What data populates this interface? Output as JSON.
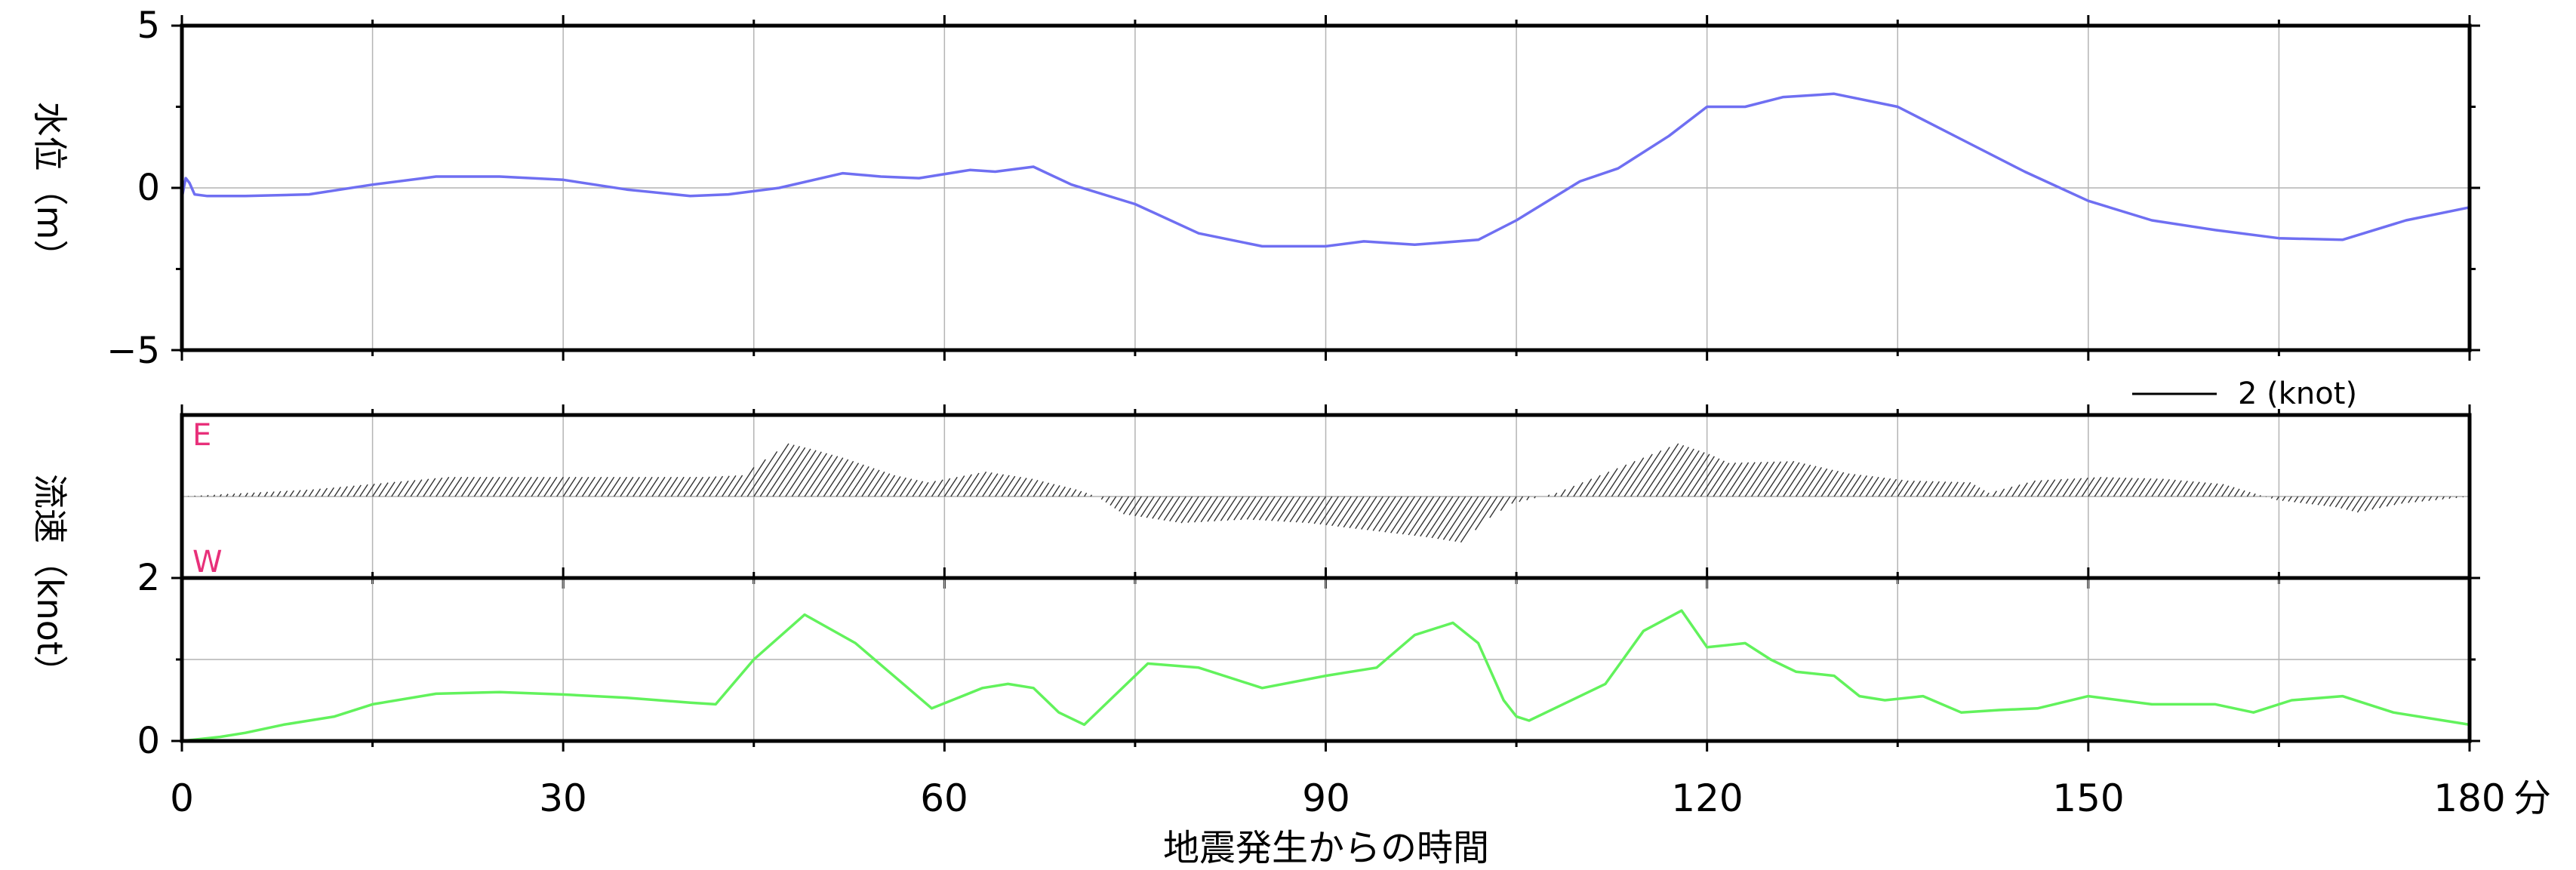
{
  "chart_data": [
    {
      "type": "line",
      "panel": "water-level",
      "ylabel": "水位（m）",
      "xlim": [
        0,
        180
      ],
      "ylim": [
        -5,
        5
      ],
      "yticks": [
        "5",
        "0",
        "−5"
      ],
      "grid": true,
      "color": "#6f6ff2",
      "series": [
        {
          "x": [
            0,
            0.3,
            0.6,
            1,
            2,
            5,
            10,
            15,
            20,
            25,
            30,
            35,
            40,
            43,
            47,
            52,
            55,
            58,
            62,
            64,
            67,
            70,
            75,
            80,
            85,
            90,
            93,
            97,
            102,
            105,
            110,
            113,
            117,
            120,
            123,
            126,
            130,
            135,
            140,
            145,
            150,
            155,
            160,
            165,
            170,
            175,
            180
          ],
          "y": [
            -0.3,
            0.3,
            0.15,
            -0.2,
            -0.25,
            -0.25,
            -0.2,
            0.1,
            0.35,
            0.35,
            0.25,
            -0.05,
            -0.25,
            -0.2,
            0.0,
            0.45,
            0.35,
            0.3,
            0.55,
            0.5,
            0.65,
            0.1,
            -0.5,
            -1.4,
            -1.8,
            -1.8,
            -1.65,
            -1.75,
            -1.6,
            -1.0,
            0.2,
            0.6,
            1.6,
            2.5,
            2.5,
            2.8,
            2.9,
            2.5,
            1.5,
            0.5,
            -0.4,
            -1.0,
            -1.3,
            -1.55,
            -1.6,
            -1.0,
            -0.6
          ]
        }
      ]
    },
    {
      "type": "vector",
      "panel": "current-direction",
      "ylabel": "流速（knot）",
      "east_label": "E",
      "west_label": "W",
      "scale_label": "2 (knot)",
      "scale_knots": 2,
      "xlim": [
        0,
        180
      ],
      "x": [
        0,
        10,
        20,
        30,
        40,
        43,
        45,
        47,
        50,
        55,
        58,
        62,
        66,
        70,
        72,
        75,
        80,
        85,
        90,
        95,
        100,
        103,
        104,
        105,
        108,
        112,
        115,
        118,
        120,
        125,
        130,
        135,
        140,
        142,
        145,
        150,
        155,
        160,
        165,
        170,
        172,
        175,
        180
      ],
      "y": [
        0.0,
        0.2,
        0.55,
        0.55,
        0.55,
        0.6,
        1.5,
        1.35,
        1.1,
        0.6,
        0.4,
        0.7,
        0.5,
        0.2,
        0.0,
        -0.5,
        -0.75,
        -0.65,
        -0.75,
        -0.95,
        -1.15,
        -1.3,
        -0.6,
        -0.2,
        0.1,
        0.9,
        1.5,
        1.2,
        0.95,
        1.0,
        0.65,
        0.45,
        0.4,
        0.1,
        0.45,
        0.55,
        0.5,
        0.35,
        -0.1,
        -0.3,
        -0.45,
        -0.2,
        0.0
      ]
    },
    {
      "type": "line",
      "panel": "current-speed",
      "xlabel": "地震発生からの時間",
      "xunit": "分",
      "xlim": [
        0,
        180
      ],
      "ylim": [
        0,
        2
      ],
      "xticks": [
        "0",
        "30",
        "60",
        "90",
        "120",
        "150",
        "180"
      ],
      "yticks": [
        "2",
        "0"
      ],
      "grid": true,
      "color": "#62f25c",
      "series": [
        {
          "x": [
            0,
            3,
            5,
            8,
            12,
            15,
            20,
            25,
            30,
            35,
            40,
            42,
            45,
            49,
            53,
            56,
            59,
            63,
            65,
            67,
            69,
            71,
            73,
            76,
            80,
            85,
            90,
            94,
            97,
            100,
            102,
            104,
            105,
            106,
            108,
            112,
            115,
            118,
            120,
            123,
            125,
            127,
            130,
            132,
            134,
            137,
            140,
            143,
            146,
            150,
            155,
            160,
            163,
            166,
            170,
            174,
            178,
            180
          ],
          "y": [
            0.0,
            0.05,
            0.1,
            0.2,
            0.3,
            0.45,
            0.58,
            0.6,
            0.57,
            0.53,
            0.47,
            0.45,
            1.0,
            1.55,
            1.2,
            0.8,
            0.4,
            0.65,
            0.7,
            0.65,
            0.35,
            0.2,
            0.5,
            0.95,
            0.9,
            0.65,
            0.8,
            0.9,
            1.3,
            1.45,
            1.2,
            0.5,
            0.3,
            0.25,
            0.4,
            0.7,
            1.35,
            1.6,
            1.15,
            1.2,
            1.0,
            0.85,
            0.8,
            0.55,
            0.5,
            0.55,
            0.35,
            0.38,
            0.4,
            0.55,
            0.45,
            0.45,
            0.35,
            0.5,
            0.55,
            0.35,
            0.25,
            0.2
          ]
        }
      ]
    }
  ]
}
